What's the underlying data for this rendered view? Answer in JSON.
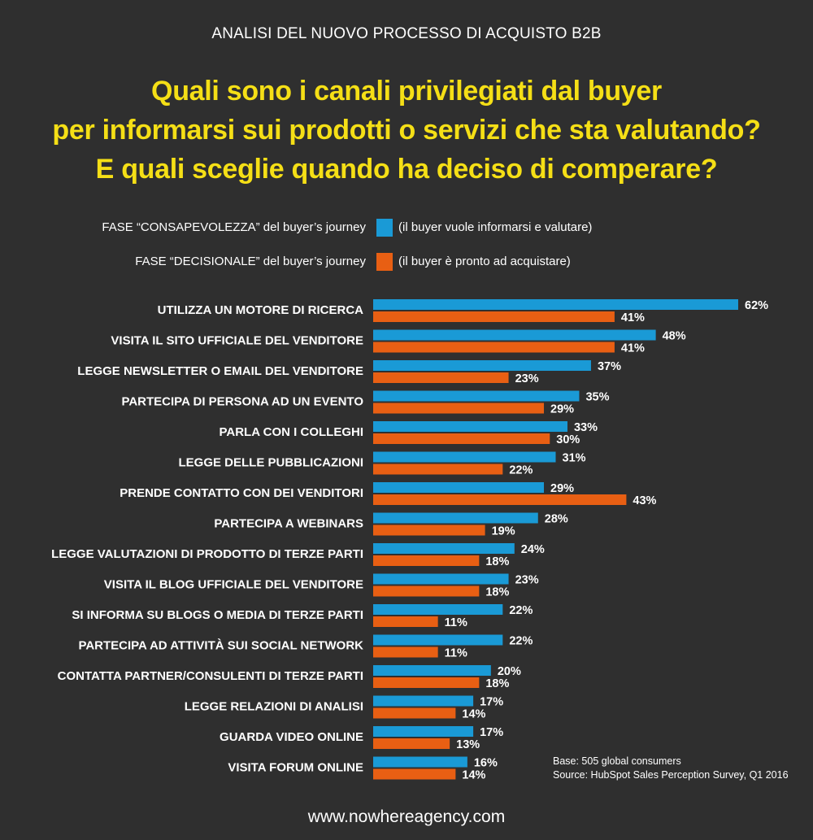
{
  "header": {
    "subtitle": "ANALISI DEL NUOVO PROCESSO DI ACQUISTO B2B",
    "title_lines": [
      "Quali sono i canali privilegiati dal buyer",
      "per informarsi sui prodotti o servizi che sta valutando?",
      "E quali sceglie quando ha deciso di comperare?"
    ]
  },
  "legend": [
    {
      "label": "FASE “CONSAPEVOLEZZA” del buyer’s journey",
      "desc": "(il buyer vuole informarsi e valutare)",
      "color": "#1a9ad6"
    },
    {
      "label": "FASE “DECISIONALE” del buyer’s journey",
      "desc": "(il buyer è pronto ad acquistare)",
      "color": "#e85f13"
    }
  ],
  "chart_data": {
    "type": "bar",
    "orientation": "horizontal",
    "categories": [
      "UTILIZZA UN MOTORE DI RICERCA",
      "VISITA IL SITO UFFICIALE DEL VENDITORE",
      "LEGGE NEWSLETTER O EMAIL DEL VENDITORE",
      "PARTECIPA DI PERSONA AD UN EVENTO",
      "PARLA CON I COLLEGHI",
      "LEGGE DELLE PUBBLICAZIONI",
      "PRENDE CONTATTO CON DEI VENDITORI",
      "PARTECIPA A WEBINARS",
      "LEGGE VALUTAZIONI DI PRODOTTO DI TERZE PARTI",
      "VISITA IL BLOG UFFICIALE DEL VENDITORE",
      "SI INFORMA SU BLOGS O MEDIA DI TERZE PARTI",
      "PARTECIPA AD ATTIVITÀ SUI SOCIAL NETWORK",
      "CONTATTA PARTNER/CONSULENTI DI TERZE PARTI",
      "LEGGE RELAZIONI DI ANALISI",
      "GUARDA VIDEO ONLINE",
      "VISITA FORUM ONLINE"
    ],
    "series": [
      {
        "color": "#1a9ad6",
        "values": [
          62,
          48,
          37,
          35,
          33,
          31,
          29,
          28,
          24,
          23,
          22,
          22,
          20,
          17,
          17,
          16
        ]
      },
      {
        "color": "#e85f13",
        "values": [
          41,
          41,
          23,
          29,
          30,
          22,
          43,
          19,
          18,
          18,
          11,
          11,
          18,
          14,
          13,
          14
        ]
      }
    ],
    "value_suffix": "%",
    "xlim": [
      0,
      62
    ],
    "grid": false
  },
  "source": {
    "base": "Base: 505 global consumers",
    "source": "Source: HubSpot Sales Perception Survey, Q1 2016"
  },
  "footer": {
    "url": "www.nowhereagency.com"
  }
}
